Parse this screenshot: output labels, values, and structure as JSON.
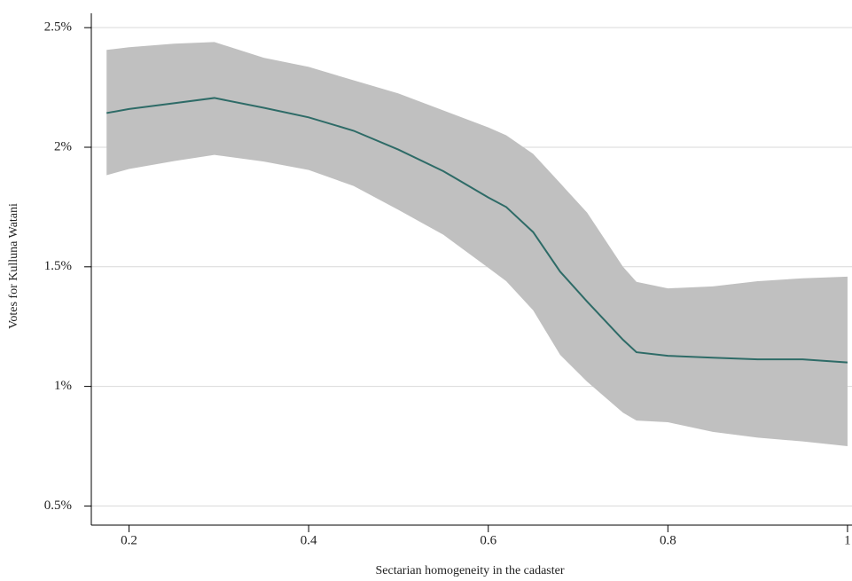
{
  "chart_data": {
    "type": "line",
    "x_label": "Sectarian homogeneity in the cadaster",
    "y_label": "Votes for Kulluna Watani",
    "x": [
      0.175,
      0.2,
      0.25,
      0.295,
      0.35,
      0.4,
      0.45,
      0.5,
      0.55,
      0.6,
      0.62,
      0.65,
      0.68,
      0.71,
      0.75,
      0.765,
      0.8,
      0.85,
      0.9,
      0.95,
      1.0
    ],
    "values": [
      2.143,
      2.16,
      2.184,
      2.206,
      2.165,
      2.125,
      2.069,
      1.99,
      1.9,
      1.79,
      1.75,
      1.645,
      1.48,
      1.355,
      1.195,
      1.143,
      1.128,
      1.12,
      1.113,
      1.113,
      1.1
    ],
    "upper": [
      2.407,
      2.418,
      2.433,
      2.44,
      2.374,
      2.336,
      2.28,
      2.225,
      2.154,
      2.083,
      2.05,
      1.972,
      1.85,
      1.727,
      1.5,
      1.437,
      1.41,
      1.418,
      1.44,
      1.452,
      1.459
    ],
    "lower": [
      1.883,
      1.909,
      1.942,
      1.968,
      1.94,
      1.905,
      1.838,
      1.738,
      1.634,
      1.496,
      1.44,
      1.318,
      1.132,
      1.02,
      0.89,
      0.857,
      0.85,
      0.81,
      0.786,
      0.77,
      0.75
    ],
    "color": "#2e6b67",
    "band_color": "#c0c0c0",
    "xlim": [
      0.158,
      1.005
    ],
    "ylim": [
      0.42,
      2.56
    ],
    "xticks": [
      0.2,
      0.4,
      0.6,
      0.8,
      1
    ],
    "yticks": [
      {
        "value": 0.5,
        "label": "0.5%"
      },
      {
        "value": 1,
        "label": "1%"
      },
      {
        "value": 1.5,
        "label": "1.5%"
      },
      {
        "value": 2,
        "label": "2%"
      },
      {
        "value": 2.5,
        "label": "2.5%"
      }
    ],
    "grid": true
  }
}
